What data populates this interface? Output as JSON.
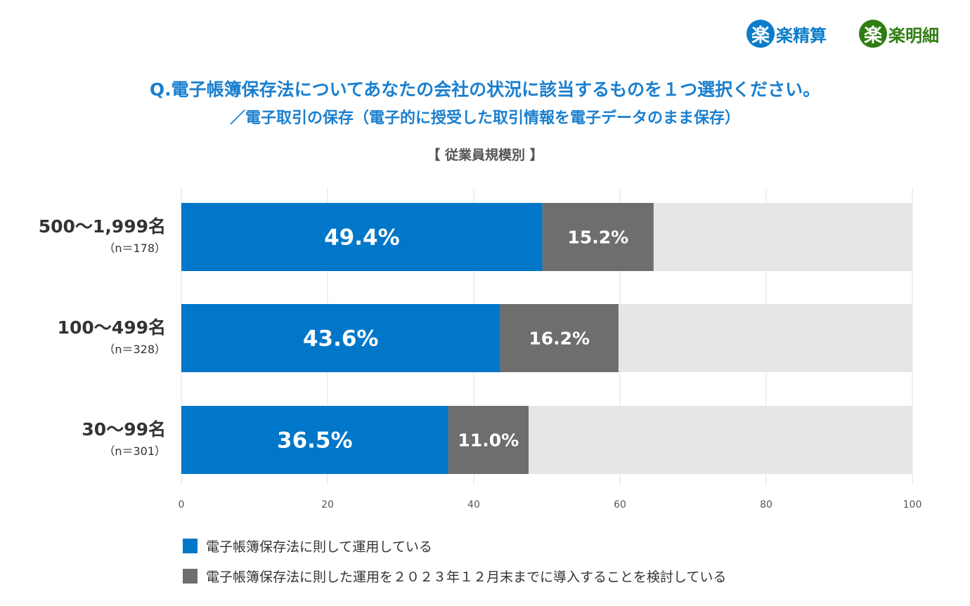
{
  "logos": [
    {
      "mark": "楽",
      "text": "楽精算",
      "color": "#0a7cc9"
    },
    {
      "mark": "楽",
      "text": "楽明細",
      "color": "#2e7d12"
    }
  ],
  "chart_data": {
    "type": "bar",
    "orientation": "horizontal",
    "stacked": true,
    "title": "Q.電子帳簿保存法についてあなたの会社の状況に該当するものを１つ選択ください。",
    "subtitle": "／電子取引の保存（電子的に授受した取引情報を電子データのまま保存）",
    "group_label": "【 従業員規模別 】",
    "categories": [
      {
        "label": "500～1,999名",
        "n": "（n＝178）"
      },
      {
        "label": "100～499名",
        "n": "（n＝328）"
      },
      {
        "label": "30～99名",
        "n": "（n＝301）"
      }
    ],
    "series": [
      {
        "name": "電子帳簿保存法に則して運用している",
        "color": "#0077c8",
        "values": [
          49.4,
          43.6,
          36.5
        ],
        "labels": [
          "49.4%",
          "43.6%",
          "36.5%"
        ]
      },
      {
        "name": "電子帳簿保存法に則した運用を２０２３年１２月末までに導入することを検討している",
        "color": "#6e6e6e",
        "values": [
          15.2,
          16.2,
          11.0
        ],
        "labels": [
          "15.2%",
          "16.2%",
          "11.0%"
        ]
      }
    ],
    "remainder_color": "#e6e6e6",
    "xlim": [
      0,
      100
    ],
    "xticks": [
      "0",
      "20",
      "40",
      "60",
      "80",
      "100"
    ],
    "grid": true,
    "legend_position": "bottom-left"
  }
}
